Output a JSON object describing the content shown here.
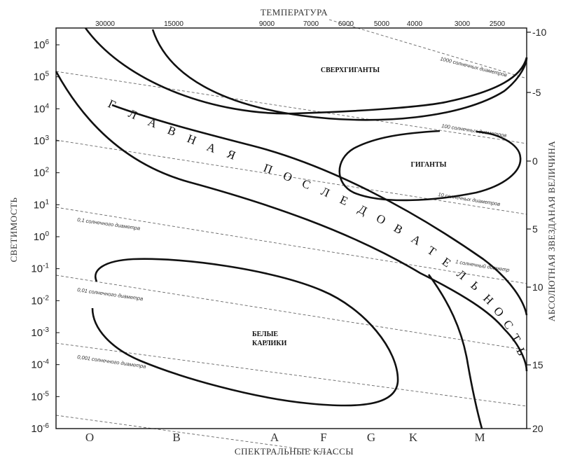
{
  "title_top": "ТЕМПЕРАТУРА",
  "title_bottom": "СПЕКТРАЛЬНЫЕ КЛАССЫ",
  "title_left": "СВЕТИМОСТЬ",
  "title_right": "АБСОЛЮТНАЯ ЗВЕЗДАНАЯ ВЕЛИЧИНА",
  "temperature_ticks": [
    "30000",
    "15000",
    "9000",
    "7000",
    "6000",
    "5000",
    "4000",
    "3000",
    "2500"
  ],
  "luminosity_ticks": [
    {
      "base": "10",
      "exp": "6"
    },
    {
      "base": "10",
      "exp": "5"
    },
    {
      "base": "10",
      "exp": "4"
    },
    {
      "base": "10",
      "exp": "3"
    },
    {
      "base": "10",
      "exp": "2"
    },
    {
      "base": "10",
      "exp": "1"
    },
    {
      "base": "10",
      "exp": "0"
    },
    {
      "base": "10",
      "exp": "-1"
    },
    {
      "base": "10",
      "exp": "-2"
    },
    {
      "base": "10",
      "exp": "-3"
    },
    {
      "base": "10",
      "exp": "-4"
    },
    {
      "base": "10",
      "exp": "-5"
    },
    {
      "base": "10",
      "exp": "-6"
    }
  ],
  "magnitude_ticks": [
    "-10",
    "-5",
    "0",
    "5",
    "10",
    "15",
    "20"
  ],
  "spectral_classes": [
    "O",
    "B",
    "A",
    "F",
    "G",
    "K",
    "M"
  ],
  "regions": {
    "supergiants": "СВЕРХГИГАНТЫ",
    "giants": "ГИГАНТЫ",
    "white_dwarfs_line1": "БЕЛЫЕ",
    "white_dwarfs_line2": "КАРЛИКИ"
  },
  "main_sequence_letters": [
    "Г",
    "Л",
    "А",
    "В",
    "Н",
    "А",
    "Я",
    "П",
    "О",
    "С",
    "Л",
    "Е",
    "Д",
    "О",
    "В",
    "А",
    "Т",
    "Е",
    "Л",
    "Ь",
    "Н",
    "О",
    "С",
    "Т",
    "Ь"
  ],
  "diameter_labels": {
    "d1000": "1000 солнечных диаметров",
    "d100": "100 солнечных диаметров",
    "d10": "10 солнечных диаметров",
    "d1": "1 солнечный диаметр",
    "d01": "0,1 солнечного диаметра",
    "d001": "0,01 солнечного диаметра",
    "d0001": "0,001 солнечного диаметра"
  }
}
